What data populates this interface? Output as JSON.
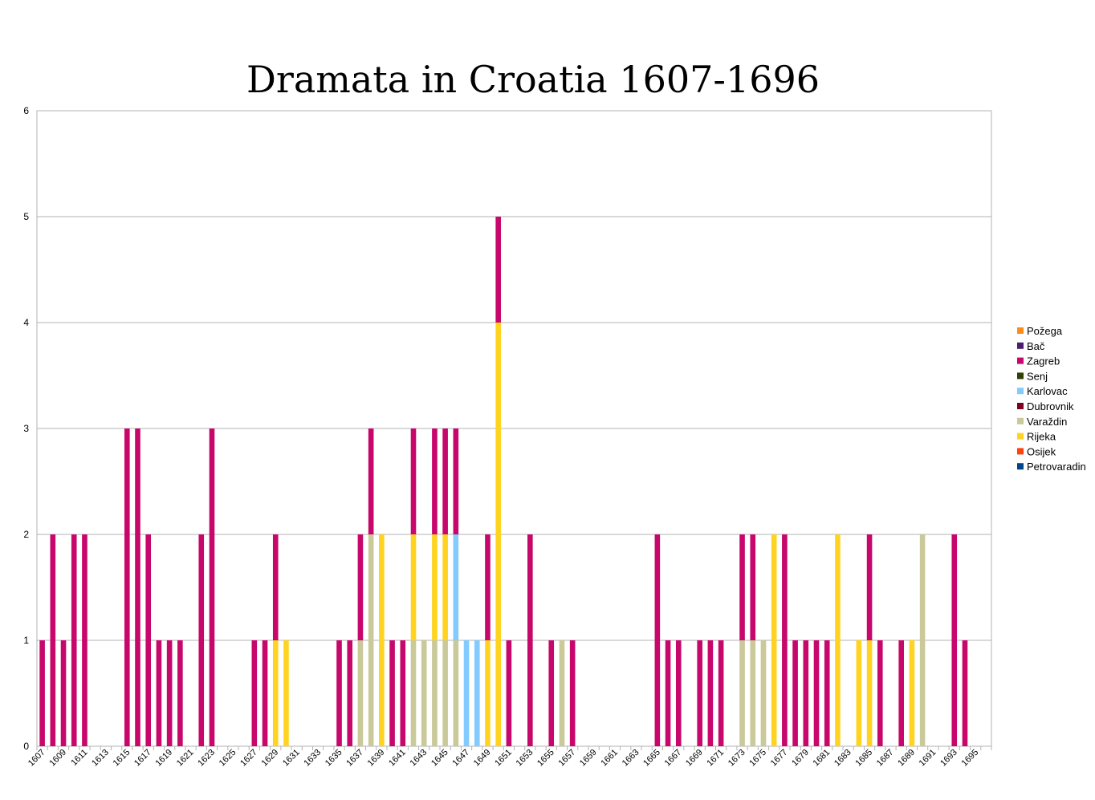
{
  "chart_data": {
    "type": "bar",
    "stacked": true,
    "title": "Dramata in Croatia 1607-1696",
    "xlabel": "",
    "ylabel": "",
    "ylim": [
      0,
      6
    ],
    "yticks": [
      0,
      1,
      2,
      3,
      4,
      5,
      6
    ],
    "grid": true,
    "legend_position": "right",
    "x_start": 1607,
    "x_end": 1696,
    "xtick_labels": [
      "1607",
      "1609",
      "1611",
      "1613",
      "1615",
      "1617",
      "1619",
      "1621",
      "1623",
      "1625",
      "1627",
      "1629",
      "1631",
      "1633",
      "1635",
      "1637",
      "1639",
      "1641",
      "1643",
      "1645",
      "1647",
      "1649",
      "1651",
      "1653",
      "1655",
      "1657",
      "1659",
      "1661",
      "1663",
      "1665",
      "1667",
      "1669",
      "1671",
      "1673",
      "1675",
      "1677",
      "1679",
      "1681",
      "1683",
      "1685",
      "1687",
      "1689",
      "1691",
      "1693",
      "1695"
    ],
    "series": [
      {
        "name": "Požega",
        "color": "#ff8c1a",
        "values": {}
      },
      {
        "name": "Bač",
        "color": "#4b1f6f",
        "values": {}
      },
      {
        "name": "Zagreb",
        "color": "#c7076b",
        "values": {
          "1607": 1,
          "1608": 2,
          "1609": 1,
          "1610": 2,
          "1611": 2,
          "1615": 3,
          "1616": 3,
          "1617": 2,
          "1618": 1,
          "1619": 1,
          "1620": 1,
          "1622": 2,
          "1623": 3,
          "1627": 1,
          "1628": 1,
          "1629": 1,
          "1635": 1,
          "1636": 1,
          "1637": 1,
          "1638": 1,
          "1640": 1,
          "1641": 1,
          "1642": 1,
          "1644": 1,
          "1645": 1,
          "1646": 1,
          "1649": 1,
          "1650": 1,
          "1651": 1,
          "1653": 2,
          "1655": 1,
          "1657": 1,
          "1665": 2,
          "1666": 1,
          "1667": 1,
          "1669": 1,
          "1670": 1,
          "1671": 1,
          "1673": 1,
          "1674": 1,
          "1677": 2,
          "1678": 1,
          "1679": 1,
          "1680": 1,
          "1681": 1,
          "1685": 1,
          "1686": 1,
          "1688": 1,
          "1693": 2,
          "1694": 1
        }
      },
      {
        "name": "Senj",
        "color": "#314004",
        "values": {}
      },
      {
        "name": "Karlovac",
        "color": "#83caff",
        "values": {
          "1646": 1,
          "1647": 1,
          "1648": 1
        }
      },
      {
        "name": "Dubrovnik",
        "color": "#7e0021",
        "values": {}
      },
      {
        "name": "Varaždin",
        "color": "#c9c99a",
        "values": {
          "1637": 1,
          "1638": 2,
          "1642": 1,
          "1643": 1,
          "1644": 1,
          "1645": 1,
          "1646": 1,
          "1656": 1,
          "1673": 1,
          "1674": 1,
          "1675": 1,
          "1690": 2
        }
      },
      {
        "name": "Rijeka",
        "color": "#ffd320",
        "values": {
          "1629": 1,
          "1630": 1,
          "1639": 2,
          "1642": 1,
          "1644": 1,
          "1645": 1,
          "1649": 1,
          "1650": 4,
          "1676": 2,
          "1682": 2,
          "1684": 1,
          "1685": 1,
          "1689": 1
        }
      },
      {
        "name": "Osijek",
        "color": "#ff420e",
        "values": {}
      },
      {
        "name": "Petrovaradin",
        "color": "#004586",
        "values": {}
      }
    ],
    "stack_order": [
      "Varaždin",
      "Rijeka",
      "Karlovac",
      "Zagreb"
    ]
  }
}
